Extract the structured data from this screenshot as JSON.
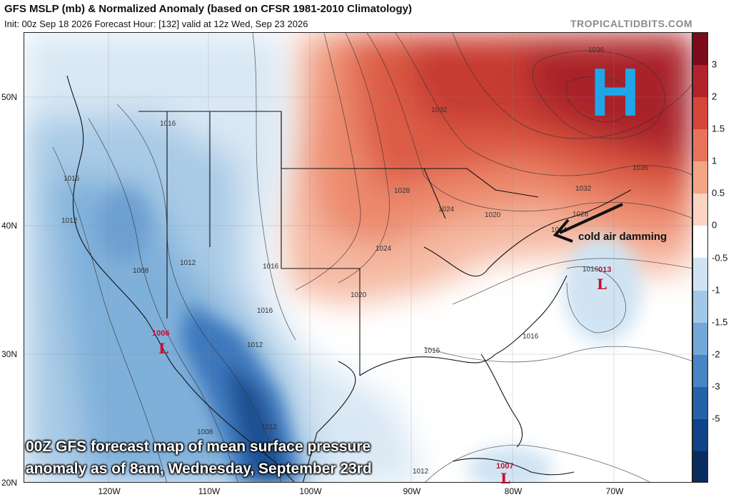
{
  "header": {
    "title": "GFS MSLP (mb) & Normalized Anomaly (based on CFSR 1981-2010 Climatology)",
    "subtitle": "Init: 00z Sep 18 2026   Forecast Hour: [132]   valid at 12z Wed, Sep 23 2026",
    "brand": "TROPICALTIDBITS.COM"
  },
  "axes": {
    "lat_labels": [
      "50N",
      "40N",
      "30N",
      "20N"
    ],
    "lon_labels": [
      "120W",
      "110W",
      "100W",
      "90W",
      "80W",
      "70W"
    ]
  },
  "colorbar": {
    "labels": [
      "3",
      "2",
      "1.5",
      "1",
      "0.5",
      "0",
      "-0.5",
      "-1",
      "-1.5",
      "-2",
      "-3",
      "-5"
    ],
    "colors": [
      "#7a0c1c",
      "#b3232c",
      "#d6453a",
      "#e7735a",
      "#f3a588",
      "#fbd4c3",
      "#ffffff",
      "#cfe3f3",
      "#a3c8e7",
      "#73a8d8",
      "#4785c4",
      "#2463aa",
      "#0f4387",
      "#0a2c61"
    ]
  },
  "map_labels": {
    "isobars": [
      "1016",
      "1016",
      "1012",
      "1008",
      "1012",
      "1012",
      "1012",
      "1008",
      "1016",
      "1016",
      "1024",
      "1020",
      "1024",
      "1028",
      "1032",
      "1036",
      "1036",
      "1032",
      "1028",
      "1024",
      "1020",
      "1016",
      "1016",
      "1016",
      "1012"
    ],
    "high_center": "H",
    "lows": [
      {
        "value": "1006",
        "letter": "L"
      },
      {
        "value": "013",
        "letter": "L"
      },
      {
        "value": "1007",
        "letter": "L"
      }
    ],
    "annotation": "cold air damming"
  },
  "caption": {
    "line1": "00Z GFS forecast map of mean surface pressure",
    "line2": "anomaly as of 8am, Wednesday, September 23rd"
  }
}
